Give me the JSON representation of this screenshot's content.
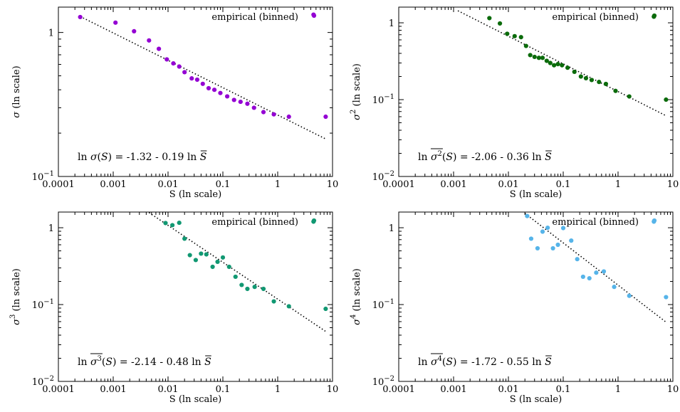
{
  "chart_data": [
    {
      "type": "scatter",
      "xscale": "log",
      "yscale": "log",
      "xlim": [
        0.0001,
        10
      ],
      "ylim": [
        0.1,
        1.5
      ],
      "xticks": [
        {
          "value": 0.0001,
          "label": "0.0001"
        },
        {
          "value": 0.001,
          "label": "0.001"
        },
        {
          "value": 0.01,
          "label": "0.01"
        },
        {
          "value": 0.1,
          "label": "0.1"
        },
        {
          "value": 1,
          "label": "1"
        },
        {
          "value": 10,
          "label": "10"
        }
      ],
      "yticks": [
        {
          "value": 1,
          "base": "1",
          "exp": ""
        },
        {
          "value": 0.1,
          "base": "10",
          "exp": "−1"
        }
      ],
      "xlabel": "S (ln scale)",
      "ylabel": {
        "sym": "σ",
        "exp": "",
        "rest": " (ln scale)"
      },
      "legend": {
        "label": "empirical (binned)",
        "position": "top-right"
      },
      "equation": {
        "lhs": "ln ",
        "sym": "σ",
        "exp": "",
        "arg": "(S)",
        "rhs": " = -1.32 - 0.19 ln ",
        "sbar": "S",
        "overline": false
      },
      "fit": {
        "intercept": -1.32,
        "slope": -0.19,
        "x_range": [
          0.00025,
          7.5
        ]
      },
      "color": "#9400d3",
      "series": [
        {
          "points": [
            [
              0.00025,
              1.28
            ],
            [
              0.0011,
              1.17
            ],
            [
              0.0024,
              1.02
            ],
            [
              0.0045,
              0.88
            ],
            [
              0.0068,
              0.77
            ],
            [
              0.0095,
              0.65
            ],
            [
              0.0125,
              0.61
            ],
            [
              0.016,
              0.58
            ],
            [
              0.02,
              0.53
            ],
            [
              0.027,
              0.48
            ],
            [
              0.034,
              0.47
            ],
            [
              0.043,
              0.44
            ],
            [
              0.055,
              0.41
            ],
            [
              0.07,
              0.4
            ],
            [
              0.09,
              0.38
            ],
            [
              0.12,
              0.36
            ],
            [
              0.16,
              0.34
            ],
            [
              0.21,
              0.33
            ],
            [
              0.28,
              0.32
            ],
            [
              0.37,
              0.3
            ],
            [
              0.55,
              0.28
            ],
            [
              0.85,
              0.27
            ],
            [
              1.6,
              0.26
            ],
            [
              4.5,
              1.33
            ],
            [
              7.5,
              0.26
            ]
          ]
        }
      ]
    },
    {
      "type": "scatter",
      "xscale": "log",
      "yscale": "log",
      "xlim": [
        0.0001,
        10
      ],
      "ylim": [
        0.01,
        1.6
      ],
      "xticks": [
        {
          "value": 0.0001,
          "label": "0.0001"
        },
        {
          "value": 0.001,
          "label": "0.001"
        },
        {
          "value": 0.01,
          "label": "0.01"
        },
        {
          "value": 0.1,
          "label": "0.1"
        },
        {
          "value": 1,
          "label": "1"
        },
        {
          "value": 10,
          "label": "10"
        }
      ],
      "yticks": [
        {
          "value": 1,
          "base": "1",
          "exp": ""
        },
        {
          "value": 0.1,
          "base": "10",
          "exp": "−1"
        },
        {
          "value": 0.01,
          "base": "10",
          "exp": "−2"
        }
      ],
      "xlabel": "S (ln scale)",
      "ylabel": {
        "sym": "σ",
        "exp": "2",
        "rest": " (ln scale)"
      },
      "legend": {
        "label": "empirical (binned)",
        "position": "top-right"
      },
      "equation": {
        "lhs": "ln ",
        "sym": "σ",
        "exp": "2",
        "arg": "(S)",
        "rhs": " = -2.06 - 0.36 ln ",
        "sbar": "S",
        "overline": true
      },
      "fit": {
        "intercept": -2.06,
        "slope": -0.36,
        "x_range": [
          0.0012,
          7.5
        ]
      },
      "color": "#0b6b0b",
      "series": [
        {
          "points": [
            [
              0.0045,
              1.15
            ],
            [
              0.007,
              0.98
            ],
            [
              0.0095,
              0.72
            ],
            [
              0.013,
              0.67
            ],
            [
              0.017,
              0.65
            ],
            [
              0.021,
              0.5
            ],
            [
              0.025,
              0.38
            ],
            [
              0.03,
              0.36
            ],
            [
              0.036,
              0.35
            ],
            [
              0.042,
              0.35
            ],
            [
              0.05,
              0.32
            ],
            [
              0.058,
              0.3
            ],
            [
              0.068,
              0.28
            ],
            [
              0.08,
              0.29
            ],
            [
              0.095,
              0.28
            ],
            [
              0.12,
              0.26
            ],
            [
              0.16,
              0.23
            ],
            [
              0.21,
              0.2
            ],
            [
              0.26,
              0.19
            ],
            [
              0.33,
              0.18
            ],
            [
              0.45,
              0.17
            ],
            [
              0.6,
              0.16
            ],
            [
              0.9,
              0.13
            ],
            [
              1.6,
              0.11
            ],
            [
              4.5,
              1.2
            ],
            [
              7.5,
              0.1
            ]
          ]
        }
      ]
    },
    {
      "type": "scatter",
      "xscale": "log",
      "yscale": "log",
      "xlim": [
        0.0001,
        10
      ],
      "ylim": [
        0.01,
        1.6
      ],
      "xticks": [
        {
          "value": 0.0001,
          "label": "0.0001"
        },
        {
          "value": 0.001,
          "label": "0.001"
        },
        {
          "value": 0.01,
          "label": "0.01"
        },
        {
          "value": 0.1,
          "label": "0.1"
        },
        {
          "value": 1,
          "label": "1"
        },
        {
          "value": 10,
          "label": "10"
        }
      ],
      "yticks": [
        {
          "value": 1,
          "base": "1",
          "exp": ""
        },
        {
          "value": 0.1,
          "base": "10",
          "exp": "−1"
        },
        {
          "value": 0.01,
          "base": "10",
          "exp": "−2"
        }
      ],
      "xlabel": "S (ln scale)",
      "ylabel": {
        "sym": "σ",
        "exp": "3",
        "rest": " (ln scale)"
      },
      "legend": {
        "label": "empirical (binned)",
        "position": "top-right"
      },
      "equation": {
        "lhs": "ln ",
        "sym": "σ",
        "exp": "3",
        "arg": "(S)",
        "rhs": " = -2.14 - 0.48 ln ",
        "sbar": "S",
        "overline": true
      },
      "fit": {
        "intercept": -2.14,
        "slope": -0.48,
        "x_range": [
          0.0045,
          7.5
        ]
      },
      "color": "#119872",
      "series": [
        {
          "points": [
            [
              0.009,
              1.15
            ],
            [
              0.012,
              1.08
            ],
            [
              0.016,
              1.16
            ],
            [
              0.02,
              0.72
            ],
            [
              0.025,
              0.44
            ],
            [
              0.032,
              0.38
            ],
            [
              0.04,
              0.46
            ],
            [
              0.05,
              0.45
            ],
            [
              0.065,
              0.31
            ],
            [
              0.08,
              0.36
            ],
            [
              0.1,
              0.41
            ],
            [
              0.13,
              0.31
            ],
            [
              0.17,
              0.23
            ],
            [
              0.22,
              0.18
            ],
            [
              0.28,
              0.16
            ],
            [
              0.38,
              0.17
            ],
            [
              0.55,
              0.16
            ],
            [
              0.85,
              0.11
            ],
            [
              1.6,
              0.095
            ],
            [
              4.5,
              1.2
            ],
            [
              7.5,
              0.088
            ]
          ]
        }
      ]
    },
    {
      "type": "scatter",
      "xscale": "log",
      "yscale": "log",
      "xlim": [
        0.0001,
        10
      ],
      "ylim": [
        0.01,
        1.6
      ],
      "xticks": [
        {
          "value": 0.0001,
          "label": "0.0001"
        },
        {
          "value": 0.001,
          "label": "0.001"
        },
        {
          "value": 0.01,
          "label": "0.01"
        },
        {
          "value": 0.1,
          "label": "0.1"
        },
        {
          "value": 1,
          "label": "1"
        },
        {
          "value": 10,
          "label": "10"
        }
      ],
      "yticks": [
        {
          "value": 1,
          "base": "1",
          "exp": ""
        },
        {
          "value": 0.1,
          "base": "10",
          "exp": "−1"
        },
        {
          "value": 0.01,
          "base": "10",
          "exp": "−2"
        }
      ],
      "xlabel": "S (ln scale)",
      "ylabel": {
        "sym": "σ",
        "exp": "4",
        "rest": " (ln scale)"
      },
      "legend": {
        "label": "empirical (binned)",
        "position": "top-right"
      },
      "equation": {
        "lhs": "ln ",
        "sym": "σ",
        "exp": "4",
        "arg": "(S)",
        "rhs": " = -1.72 - 0.55 ln ",
        "sbar": "S",
        "overline": true
      },
      "fit": {
        "intercept": -1.72,
        "slope": -0.55,
        "x_range": [
          0.02,
          7.5
        ]
      },
      "color": "#56b4e9",
      "series": [
        {
          "points": [
            [
              0.022,
              1.42
            ],
            [
              0.026,
              0.72
            ],
            [
              0.034,
              0.54
            ],
            [
              0.042,
              0.89
            ],
            [
              0.052,
              1.0
            ],
            [
              0.065,
              0.54
            ],
            [
              0.08,
              0.6
            ],
            [
              0.1,
              0.99
            ],
            [
              0.14,
              0.68
            ],
            [
              0.18,
              0.39
            ],
            [
              0.23,
              0.23
            ],
            [
              0.3,
              0.22
            ],
            [
              0.4,
              0.26
            ],
            [
              0.55,
              0.27
            ],
            [
              0.85,
              0.17
            ],
            [
              1.6,
              0.13
            ],
            [
              4.5,
              1.2
            ],
            [
              7.5,
              0.125
            ]
          ]
        }
      ]
    }
  ]
}
